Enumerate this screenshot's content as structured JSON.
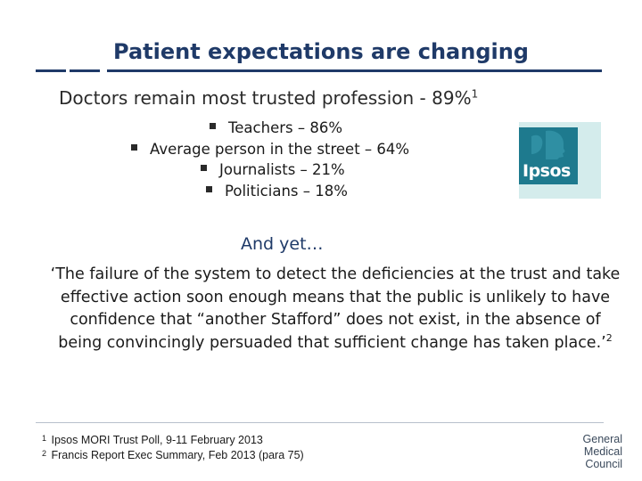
{
  "slide": {
    "title": "Patient expectations are changing",
    "subtitle": "Doctors remain most trusted profession - 89%",
    "subtitle_footnote_mark": "1",
    "bullets": [
      {
        "label": "Teachers – 86%"
      },
      {
        "label": "Average person in the street – 64%"
      },
      {
        "label": "Journalists – 21%"
      },
      {
        "label": "Politicians – 18%"
      }
    ],
    "logo_text": "Ipsos",
    "and_yet": "And yet…",
    "quote": "‘The failure of the system to detect the deficiencies at the trust and take effective action soon enough means that the public is unlikely to have confidence that “another Stafford” does not exist, in the absence of being convincingly persuaded that sufficient change has taken place.’",
    "quote_footnote_mark": "2",
    "footnotes": [
      {
        "mark": "1",
        "text": "Ipsos MORI Trust Poll, 9-11 February 2013"
      },
      {
        "mark": "2",
        "text": "Francis Report Exec Summary, Feb 2013 (para 75)"
      }
    ],
    "org_logo_lines": [
      "General",
      "Medical",
      "Council"
    ]
  },
  "colors": {
    "accent": "#1f3a68",
    "logo_teal": "#1e7a8e",
    "logo_bg": "#d4ecec"
  }
}
